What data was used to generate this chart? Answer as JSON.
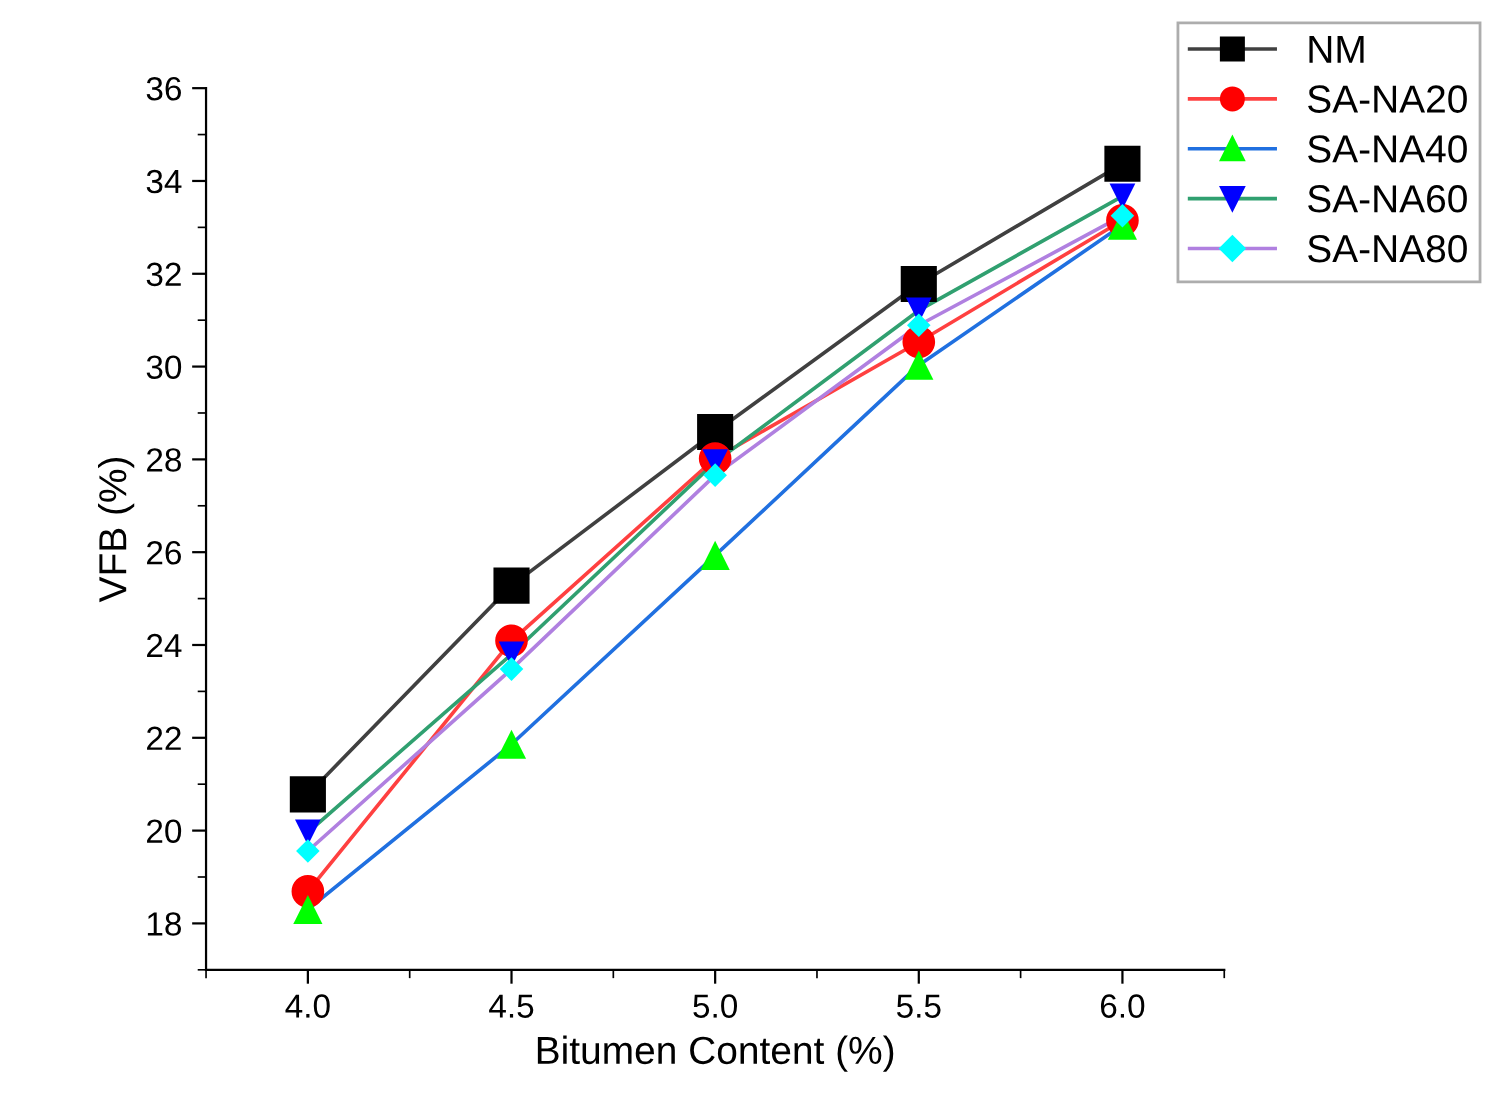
{
  "chart_data": {
    "type": "line",
    "xlabel": "Bitumen Content (%)",
    "ylabel": "VFB (%)",
    "x": [
      4.0,
      4.5,
      5.0,
      5.5,
      6.0
    ],
    "xlim": [
      3.75,
      6.25
    ],
    "xticks": [
      {
        "value": 3.75,
        "label": null
      },
      {
        "value": 4.0,
        "label": "4.0"
      },
      {
        "value": 4.25,
        "label": null
      },
      {
        "value": 4.5,
        "label": "4.5"
      },
      {
        "value": 4.75,
        "label": null
      },
      {
        "value": 5.0,
        "label": "5.0"
      },
      {
        "value": 5.25,
        "label": null
      },
      {
        "value": 5.5,
        "label": "5.5"
      },
      {
        "value": 5.75,
        "label": null
      },
      {
        "value": 6.0,
        "label": "6.0"
      },
      {
        "value": 6.25,
        "label": null
      }
    ],
    "ylim": [
      17,
      36
    ],
    "yticks": [
      {
        "value": 17,
        "label": null
      },
      18,
      {
        "value": 19,
        "label": null
      },
      20,
      {
        "value": 21,
        "label": null
      },
      22,
      {
        "value": 23,
        "label": null
      },
      24,
      {
        "value": 25,
        "label": null
      },
      26,
      {
        "value": 27,
        "label": null
      },
      28,
      {
        "value": 29,
        "label": null
      },
      30,
      {
        "value": 31,
        "label": null
      },
      32,
      {
        "value": 33,
        "label": null
      },
      34,
      {
        "value": 35,
        "label": null
      },
      36
    ],
    "grid": false,
    "legend": "top right",
    "line_style": "solid",
    "series": [
      {
        "name": "NM",
        "color": "#404040",
        "colors": [
          "#000000",
          "#000000",
          "#000000",
          "#000000",
          "#000000"
        ],
        "marker": "square",
        "values": [
          20.78,
          25.28,
          28.59,
          31.78,
          34.37
        ]
      },
      {
        "name": "SA-NA20",
        "color": "#ff4040",
        "colors": [
          "#ff0000",
          "#ff0000",
          "#ff0000",
          "#ff0000",
          "#ff0000"
        ],
        "marker": "circle",
        "values": [
          18.69,
          24.09,
          28.02,
          30.53,
          33.15
        ]
      },
      {
        "name": "SA-NA40",
        "color": "#2070e0",
        "colors": [
          "#00ff00",
          "#00ff00",
          "#00ff00",
          "#00ff00",
          "#00ff00"
        ],
        "marker": "triangle",
        "values": [
          18.3,
          21.86,
          25.93,
          30.03,
          33.05
        ]
      },
      {
        "name": "SA-NA60",
        "color": "#30a070",
        "colors": [
          "#0000ff",
          "#0000ff",
          "#0000ff",
          "#0000ff",
          "#0000ff"
        ],
        "marker": "triangle_down",
        "values": [
          19.96,
          23.8,
          27.94,
          31.21,
          33.67
        ]
      },
      {
        "name": "SA-NA80",
        "color": "#b080e0",
        "colors": [
          "#00ffff",
          "#00ffff",
          "#00ffff",
          "#00ffff",
          "#00ffff"
        ],
        "marker": "diamond",
        "values": [
          19.56,
          23.48,
          27.66,
          30.89,
          33.25
        ]
      }
    ]
  }
}
